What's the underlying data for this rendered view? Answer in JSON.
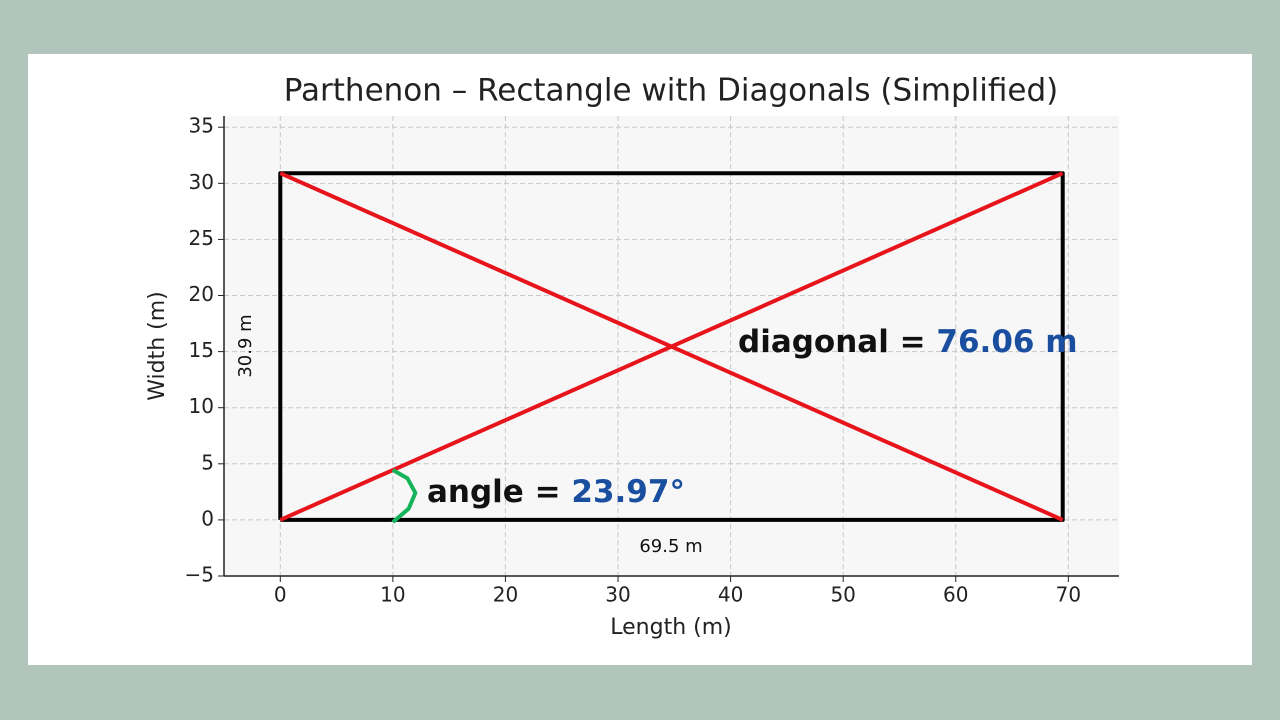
{
  "chart_data": {
    "type": "line",
    "title": "Parthenon – Rectangle with Diagonals (Simplified)",
    "x_label": "Length (m)",
    "y_label": "Width (m)",
    "xlim": [
      -5,
      74.5
    ],
    "ylim": [
      -5,
      36
    ],
    "xticks": [
      0,
      10,
      20,
      30,
      40,
      50,
      60,
      70
    ],
    "yticks": [
      {
        "value": -5,
        "label": "−5"
      },
      0,
      5,
      10,
      15,
      20,
      25,
      30,
      35
    ],
    "grid": true,
    "series": [
      {
        "color": "#000000",
        "x": [
          0,
          69.5,
          69.5,
          0,
          0
        ],
        "values": [
          0,
          0,
          30.9,
          30.9,
          0
        ]
      },
      {
        "color": "#e8141c",
        "x": [
          0,
          69.5
        ],
        "values": [
          0,
          30.9
        ]
      },
      {
        "color": "#e8141c",
        "x": [
          0,
          69.5
        ],
        "values": [
          30.9,
          0
        ]
      },
      {
        "color": "#16b45a",
        "x": [
          10,
          11.4,
          12,
          11.3,
          10
        ],
        "values": [
          -0.2,
          1,
          2.4,
          3.7,
          4.45
        ]
      }
    ],
    "annotations": [
      {
        "text": "30.9 m"
      },
      {
        "text": "69.5 m"
      },
      {
        "text": "diagonal = ",
        "highlight": "76.06 m",
        "highlight_color": "#1a4fa0"
      },
      {
        "text": "angle = ",
        "highlight": "23.97°",
        "highlight_color": "#1a4fa0"
      }
    ]
  }
}
